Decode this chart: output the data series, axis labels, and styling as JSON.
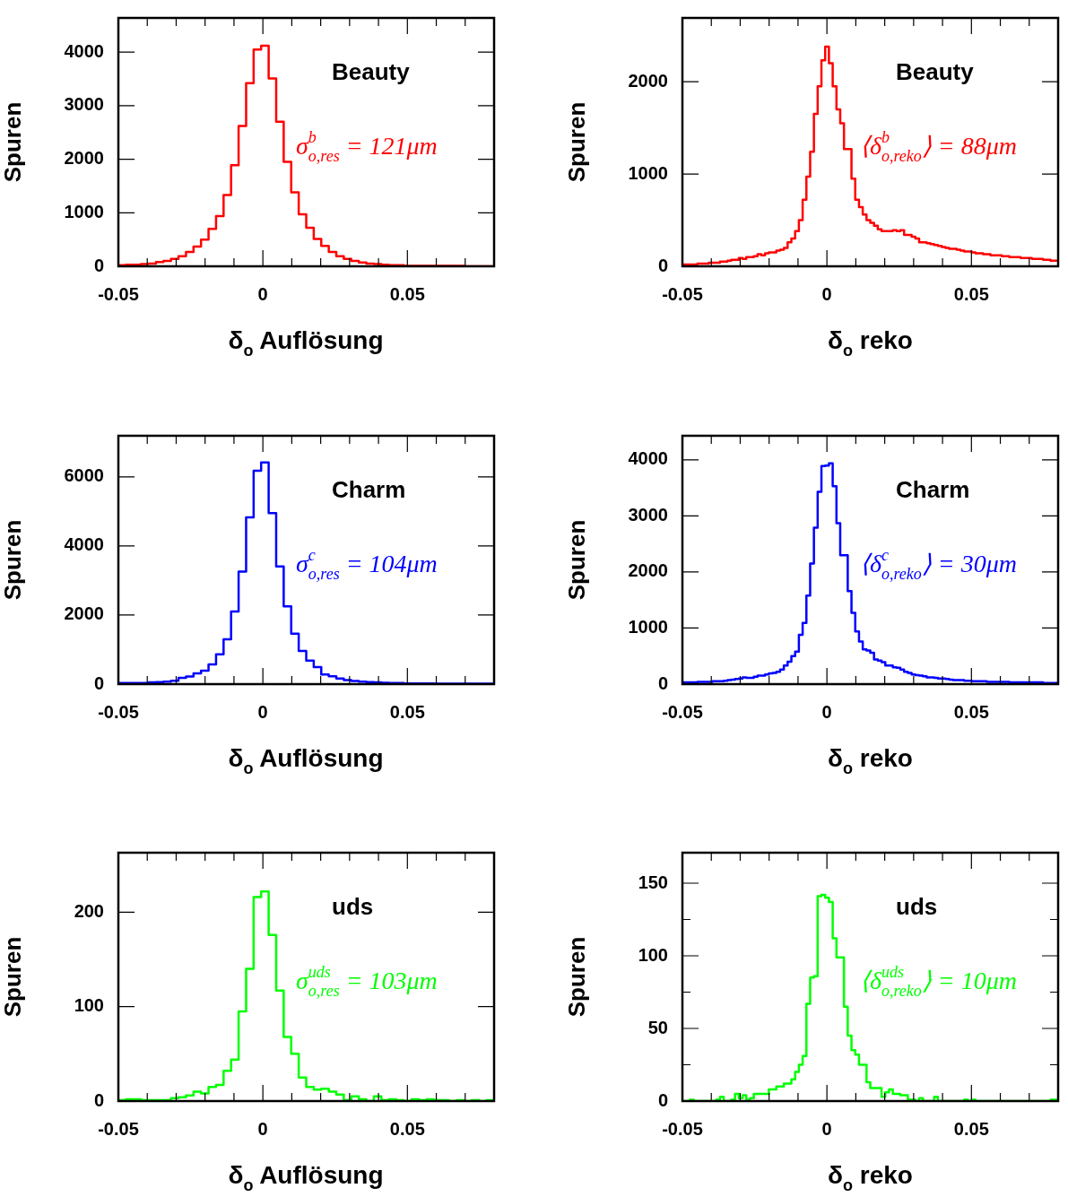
{
  "chart_data": [
    {
      "type": "histogram",
      "xlabel": "δ$_{o}$ Auflösung",
      "ylabel": "Spuren",
      "color": "#ff0000",
      "annotations": [
        "Beauty",
        "σ$^{b}$$_{o,res}$ = 121μm"
      ],
      "xlim": [
        -0.05,
        0.08
      ],
      "xticks": [
        -0.05,
        {
          "value": -0.04,
          "label": null
        },
        {
          "value": -0.03,
          "label": null
        },
        {
          "value": -0.02,
          "label": null
        },
        {
          "value": -0.01,
          "label": null
        },
        0,
        {
          "value": 0.01,
          "label": null
        },
        {
          "value": 0.02,
          "label": null
        },
        {
          "value": 0.03,
          "label": null
        },
        {
          "value": 0.04,
          "label": null
        },
        0.05,
        {
          "value": 0.06,
          "label": null
        },
        {
          "value": 0.07,
          "label": null
        }
      ],
      "ylim": [
        0,
        4640
      ],
      "yticks": [
        0,
        1000,
        2000,
        3000,
        4000
      ],
      "bins": [
        -0.05,
        -0.0474,
        -0.0448,
        -0.0422,
        -0.0396,
        -0.037,
        -0.0344,
        -0.0318,
        -0.0292,
        -0.0266,
        -0.024,
        -0.0214,
        -0.0188,
        -0.0162,
        -0.0136,
        -0.011,
        -0.0084,
        -0.0058,
        -0.0032,
        -0.0006,
        0.002,
        0.0046,
        0.0072,
        0.0098,
        0.0124,
        0.015,
        0.0176,
        0.0202,
        0.0228,
        0.0254,
        0.028,
        0.0306,
        0.0332,
        0.0358,
        0.0384,
        0.041,
        0.0436,
        0.0462,
        0.0488,
        0.0514,
        0.054,
        0.0566,
        0.0592,
        0.0618,
        0.0644,
        0.067,
        0.0696,
        0.0722,
        0.0748,
        0.0774,
        0.08
      ],
      "values": [
        20,
        30,
        30,
        40,
        50,
        80,
        100,
        140,
        190,
        270,
        370,
        500,
        700,
        940,
        1330,
        1890,
        2620,
        3420,
        4050,
        4120,
        3510,
        2700,
        1950,
        1380,
        970,
        720,
        510,
        380,
        270,
        190,
        140,
        100,
        70,
        50,
        40,
        30,
        20,
        20,
        10,
        10,
        10,
        10,
        10,
        10,
        10,
        10,
        0,
        0,
        0,
        0
      ]
    },
    {
      "type": "histogram",
      "xlabel": "δ$_{o}$ reko",
      "ylabel": "Spuren",
      "color": "#ff0000",
      "annotations": [
        "Beauty",
        "⟨δ$^{b}$$_{o,reko}$⟩ = 88μm"
      ],
      "xlim": [
        -0.05,
        0.08
      ],
      "xticks": [
        -0.05,
        {
          "value": -0.04,
          "label": null
        },
        {
          "value": -0.03,
          "label": null
        },
        {
          "value": -0.02,
          "label": null
        },
        {
          "value": -0.01,
          "label": null
        },
        0,
        {
          "value": 0.01,
          "label": null
        },
        {
          "value": 0.02,
          "label": null
        },
        {
          "value": 0.03,
          "label": null
        },
        {
          "value": 0.04,
          "label": null
        },
        0.05,
        {
          "value": 0.06,
          "label": null
        },
        {
          "value": 0.07,
          "label": null
        }
      ],
      "ylim": [
        0,
        2690
      ],
      "yticks": [
        0,
        1000,
        2000
      ],
      "bins": [
        -0.05,
        -0.0487,
        -0.0474,
        -0.0461,
        -0.0448,
        -0.0435,
        -0.0422,
        -0.0409,
        -0.0396,
        -0.0383,
        -0.037,
        -0.0357,
        -0.0344,
        -0.0331,
        -0.0318,
        -0.0305,
        -0.0292,
        -0.0279,
        -0.0266,
        -0.0253,
        -0.024,
        -0.0227,
        -0.0214,
        -0.0201,
        -0.0188,
        -0.0175,
        -0.0162,
        -0.0149,
        -0.0136,
        -0.0123,
        -0.011,
        -0.0097,
        -0.0084,
        -0.0071,
        -0.0058,
        -0.0045,
        -0.0032,
        -0.0019,
        -0.0006,
        0.0007,
        0.002,
        0.0033,
        0.0046,
        0.0059,
        0.0072,
        0.0085,
        0.0098,
        0.0111,
        0.0124,
        0.0137,
        0.015,
        0.0163,
        0.0176,
        0.0189,
        0.0202,
        0.0215,
        0.0228,
        0.0241,
        0.0254,
        0.0267,
        0.028,
        0.0293,
        0.0306,
        0.0319,
        0.0332,
        0.0345,
        0.0358,
        0.0371,
        0.0384,
        0.0397,
        0.041,
        0.0423,
        0.0436,
        0.0449,
        0.0462,
        0.0475,
        0.0488,
        0.0501,
        0.0514,
        0.0527,
        0.054,
        0.0553,
        0.0566,
        0.0579,
        0.0592,
        0.0605,
        0.0618,
        0.0631,
        0.0644,
        0.0657,
        0.067,
        0.0683,
        0.0696,
        0.0709,
        0.0722,
        0.0735,
        0.0748,
        0.0761,
        0.0774,
        0.0787,
        0.08
      ],
      "values": [
        20,
        20,
        20,
        20,
        30,
        30,
        30,
        40,
        40,
        40,
        50,
        50,
        60,
        70,
        70,
        90,
        80,
        100,
        100,
        110,
        130,
        120,
        140,
        150,
        150,
        170,
        180,
        200,
        260,
        300,
        380,
        500,
        720,
        970,
        1240,
        1650,
        1950,
        2230,
        2380,
        2200,
        1950,
        1700,
        1550,
        1270,
        1270,
        950,
        720,
        640,
        560,
        500,
        470,
        440,
        400,
        380,
        380,
        380,
        390,
        380,
        390,
        340,
        340,
        320,
        300,
        260,
        260,
        250,
        240,
        230,
        220,
        210,
        200,
        190,
        190,
        180,
        170,
        160,
        160,
        150,
        140,
        140,
        130,
        130,
        120,
        120,
        120,
        110,
        110,
        100,
        100,
        100,
        90,
        90,
        90,
        80,
        80,
        80,
        70,
        70,
        60,
        60
      ]
    },
    {
      "type": "histogram",
      "xlabel": "δ$_{o}$ Auflösung",
      "ylabel": "Spuren",
      "color": "#0000ff",
      "annotations": [
        "Charm",
        "σ$^{c}$$_{o,res}$ = 104μm"
      ],
      "xlim": [
        -0.05,
        0.08
      ],
      "xticks": [
        -0.05,
        {
          "value": -0.04,
          "label": null
        },
        {
          "value": -0.03,
          "label": null
        },
        {
          "value": -0.02,
          "label": null
        },
        {
          "value": -0.01,
          "label": null
        },
        0,
        {
          "value": 0.01,
          "label": null
        },
        {
          "value": 0.02,
          "label": null
        },
        {
          "value": 0.03,
          "label": null
        },
        {
          "value": 0.04,
          "label": null
        },
        0.05,
        {
          "value": 0.06,
          "label": null
        },
        {
          "value": 0.07,
          "label": null
        }
      ],
      "ylim": [
        0,
        7190
      ],
      "yticks": [
        0,
        2000,
        4000,
        6000
      ],
      "bins": [
        -0.05,
        -0.0474,
        -0.0448,
        -0.0422,
        -0.0396,
        -0.037,
        -0.0344,
        -0.0318,
        -0.0292,
        -0.0266,
        -0.024,
        -0.0214,
        -0.0188,
        -0.0162,
        -0.0136,
        -0.011,
        -0.0084,
        -0.0058,
        -0.0032,
        -0.0006,
        0.002,
        0.0046,
        0.0072,
        0.0098,
        0.0124,
        0.015,
        0.0176,
        0.0202,
        0.0228,
        0.0254,
        0.028,
        0.0306,
        0.0332,
        0.0358,
        0.0384,
        0.041,
        0.0436,
        0.0462,
        0.0488,
        0.0514,
        0.054,
        0.0566,
        0.0592,
        0.0618,
        0.0644,
        0.067,
        0.0696,
        0.0722,
        0.0748,
        0.0774,
        0.08
      ],
      "values": [
        30,
        30,
        30,
        30,
        50,
        60,
        70,
        100,
        180,
        220,
        310,
        390,
        570,
        860,
        1300,
        2100,
        3260,
        4830,
        6180,
        6420,
        4950,
        3410,
        2250,
        1460,
        960,
        680,
        490,
        280,
        230,
        160,
        120,
        90,
        70,
        60,
        50,
        40,
        30,
        30,
        20,
        20,
        20,
        20,
        10,
        10,
        10,
        10,
        10,
        10,
        10,
        10
      ]
    },
    {
      "type": "histogram",
      "xlabel": "δ$_{o}$ reko",
      "ylabel": "Spuren",
      "color": "#0000ff",
      "annotations": [
        "Charm",
        "⟨δ$^{c}$$_{o,reko}$⟩ = 30μm"
      ],
      "xlim": [
        -0.05,
        0.08
      ],
      "xticks": [
        -0.05,
        {
          "value": -0.04,
          "label": null
        },
        {
          "value": -0.03,
          "label": null
        },
        {
          "value": -0.02,
          "label": null
        },
        {
          "value": -0.01,
          "label": null
        },
        0,
        {
          "value": 0.01,
          "label": null
        },
        {
          "value": 0.02,
          "label": null
        },
        {
          "value": 0.03,
          "label": null
        },
        {
          "value": 0.04,
          "label": null
        },
        0.05,
        {
          "value": 0.06,
          "label": null
        },
        {
          "value": 0.07,
          "label": null
        }
      ],
      "ylim": [
        0,
        4430
      ],
      "yticks": [
        0,
        1000,
        2000,
        3000,
        4000
      ],
      "bins": [
        -0.05,
        -0.0487,
        -0.0474,
        -0.0461,
        -0.0448,
        -0.0435,
        -0.0422,
        -0.0409,
        -0.0396,
        -0.0383,
        -0.037,
        -0.0357,
        -0.0344,
        -0.0331,
        -0.0318,
        -0.0305,
        -0.0292,
        -0.0279,
        -0.0266,
        -0.0253,
        -0.024,
        -0.0227,
        -0.0214,
        -0.0201,
        -0.0188,
        -0.0175,
        -0.0162,
        -0.0149,
        -0.0136,
        -0.0123,
        -0.011,
        -0.0097,
        -0.0084,
        -0.0071,
        -0.0058,
        -0.0045,
        -0.0032,
        -0.0019,
        -0.0006,
        0.0007,
        0.002,
        0.0033,
        0.0046,
        0.0059,
        0.0072,
        0.0085,
        0.0098,
        0.0111,
        0.0124,
        0.0137,
        0.015,
        0.0163,
        0.0176,
        0.0189,
        0.0202,
        0.0215,
        0.0228,
        0.0241,
        0.0254,
        0.0267,
        0.028,
        0.0293,
        0.0306,
        0.0319,
        0.0332,
        0.0345,
        0.0358,
        0.0371,
        0.0384,
        0.0397,
        0.041,
        0.0423,
        0.0436,
        0.0449,
        0.0462,
        0.0475,
        0.0488,
        0.0501,
        0.0514,
        0.0527,
        0.054,
        0.0553,
        0.0566,
        0.0579,
        0.0592,
        0.0605,
        0.0618,
        0.0631,
        0.0644,
        0.0657,
        0.067,
        0.0683,
        0.0696,
        0.0709,
        0.0722,
        0.0735,
        0.0748,
        0.0761,
        0.0774,
        0.0787,
        0.08
      ],
      "values": [
        30,
        30,
        30,
        30,
        40,
        40,
        40,
        40,
        50,
        50,
        50,
        60,
        70,
        80,
        90,
        100,
        120,
        110,
        110,
        130,
        150,
        150,
        170,
        190,
        200,
        220,
        260,
        330,
        400,
        500,
        580,
        880,
        1090,
        1580,
        2150,
        2790,
        3430,
        3890,
        3900,
        3940,
        3530,
        2870,
        2300,
        2300,
        1660,
        1270,
        940,
        760,
        620,
        600,
        560,
        440,
        420,
        390,
        330,
        330,
        300,
        290,
        260,
        220,
        200,
        170,
        160,
        150,
        140,
        120,
        120,
        110,
        100,
        100,
        90,
        80,
        70,
        70,
        70,
        60,
        60,
        50,
        50,
        50,
        50,
        40,
        40,
        40,
        40,
        40,
        40,
        30,
        30,
        30,
        30,
        30,
        30,
        30,
        30,
        30,
        20,
        20,
        20,
        20
      ]
    },
    {
      "type": "histogram",
      "xlabel": "δ$_{o}$ Auflösung",
      "ylabel": "Spuren",
      "color": "#00ff00",
      "annotations": [
        "uds",
        "σ$^{uds}$$_{o,res}$ = 103μm"
      ],
      "xlim": [
        -0.05,
        0.08
      ],
      "xticks": [
        -0.05,
        {
          "value": -0.04,
          "label": null
        },
        {
          "value": -0.03,
          "label": null
        },
        {
          "value": -0.02,
          "label": null
        },
        {
          "value": -0.01,
          "label": null
        },
        0,
        {
          "value": 0.01,
          "label": null
        },
        {
          "value": 0.02,
          "label": null
        },
        {
          "value": 0.03,
          "label": null
        },
        {
          "value": 0.04,
          "label": null
        },
        0.05,
        {
          "value": 0.06,
          "label": null
        },
        {
          "value": 0.07,
          "label": null
        }
      ],
      "ylim": [
        0,
        263
      ],
      "yticks": [
        0,
        100,
        200
      ],
      "bins": [
        -0.05,
        -0.0474,
        -0.0448,
        -0.0422,
        -0.0396,
        -0.037,
        -0.0344,
        -0.0318,
        -0.0292,
        -0.0266,
        -0.024,
        -0.0214,
        -0.0188,
        -0.0162,
        -0.0136,
        -0.011,
        -0.0084,
        -0.0058,
        -0.0032,
        -0.0006,
        0.002,
        0.0046,
        0.0072,
        0.0098,
        0.0124,
        0.015,
        0.0176,
        0.0202,
        0.0228,
        0.0254,
        0.028,
        0.0306,
        0.0332,
        0.0358,
        0.0384,
        0.041,
        0.0436,
        0.0462,
        0.0488,
        0.0514,
        0.054,
        0.0566,
        0.0592,
        0.0618,
        0.0644,
        0.067,
        0.0696,
        0.0722,
        0.0748,
        0.0774,
        0.08
      ],
      "values": [
        1,
        2,
        2,
        1,
        1,
        1,
        1,
        3,
        4,
        6,
        10,
        8,
        15,
        17,
        32,
        44,
        95,
        140,
        216,
        222,
        176,
        117,
        68,
        50,
        25,
        15,
        12,
        13,
        10,
        7,
        1,
        5,
        2,
        0,
        5,
        1,
        2,
        1,
        0,
        2,
        1,
        2,
        1,
        1,
        0,
        1,
        0,
        1,
        0,
        1
      ]
    },
    {
      "type": "histogram",
      "xlabel": "δ$_{o}$ reko",
      "ylabel": "Spuren",
      "color": "#00ff00",
      "annotations": [
        "uds",
        "⟨δ$^{uds}$$_{o,reko}$⟩ = 10μm"
      ],
      "xlim": [
        -0.05,
        0.08
      ],
      "xticks": [
        -0.05,
        {
          "value": -0.04,
          "label": null
        },
        {
          "value": -0.03,
          "label": null
        },
        {
          "value": -0.02,
          "label": null
        },
        {
          "value": -0.01,
          "label": null
        },
        0,
        {
          "value": 0.01,
          "label": null
        },
        {
          "value": 0.02,
          "label": null
        },
        {
          "value": 0.03,
          "label": null
        },
        {
          "value": 0.04,
          "label": null
        },
        0.05,
        {
          "value": 0.06,
          "label": null
        },
        {
          "value": 0.07,
          "label": null
        }
      ],
      "ylim": [
        0,
        171
      ],
      "yticks": [
        0,
        {
          "value": 25,
          "label": null
        },
        50,
        {
          "value": 75,
          "label": null
        },
        100,
        {
          "value": 125,
          "label": null
        },
        150
      ],
      "bins": [
        -0.05,
        -0.0487,
        -0.0474,
        -0.0461,
        -0.0448,
        -0.0435,
        -0.0422,
        -0.0409,
        -0.0396,
        -0.0383,
        -0.037,
        -0.0357,
        -0.0344,
        -0.0331,
        -0.0318,
        -0.0305,
        -0.0292,
        -0.0279,
        -0.0266,
        -0.0253,
        -0.024,
        -0.0227,
        -0.0214,
        -0.0201,
        -0.0188,
        -0.0175,
        -0.0162,
        -0.0149,
        -0.0136,
        -0.0123,
        -0.011,
        -0.0097,
        -0.0084,
        -0.0071,
        -0.0058,
        -0.0045,
        -0.0032,
        -0.0019,
        -0.0006,
        0.0007,
        0.002,
        0.0033,
        0.0046,
        0.0059,
        0.0072,
        0.0085,
        0.0098,
        0.0111,
        0.0124,
        0.0137,
        0.015,
        0.0163,
        0.0176,
        0.0189,
        0.0202,
        0.0215,
        0.0228,
        0.0241,
        0.0254,
        0.0267,
        0.028,
        0.0293,
        0.0306,
        0.0319,
        0.0332,
        0.0345,
        0.0358,
        0.0371,
        0.0384,
        0.0397,
        0.041,
        0.0423,
        0.0436,
        0.0449,
        0.0462,
        0.0475,
        0.0488,
        0.0501,
        0.0514,
        0.0527,
        0.054,
        0.0553,
        0.0566,
        0.0579,
        0.0592,
        0.0605,
        0.0618,
        0.0631,
        0.0644,
        0.0657,
        0.067,
        0.0683,
        0.0696,
        0.0709,
        0.0722,
        0.0735,
        0.0748,
        0.0761,
        0.0774,
        0.0787,
        0.08
      ],
      "values": [
        0,
        0,
        1,
        0,
        0,
        0,
        0,
        0,
        0,
        1,
        3,
        0,
        0,
        1,
        5,
        2,
        4,
        1,
        2,
        5,
        5,
        5,
        5,
        8,
        8,
        10,
        10,
        12,
        12,
        15,
        20,
        25,
        31,
        67,
        85,
        86,
        141,
        142,
        140,
        137,
        112,
        99,
        99,
        65,
        45,
        35,
        32,
        25,
        25,
        13,
        9,
        9,
        9,
        3,
        6,
        8,
        5,
        5,
        4,
        4,
        1,
        1,
        0,
        2,
        0,
        0,
        0,
        3,
        0,
        0,
        0,
        0,
        0,
        0,
        0,
        1,
        0,
        1,
        0,
        0,
        0,
        0,
        0,
        0,
        0,
        0,
        0,
        0,
        0,
        0,
        0,
        0,
        0,
        0,
        0,
        0,
        0,
        0,
        1,
        1
      ]
    }
  ]
}
